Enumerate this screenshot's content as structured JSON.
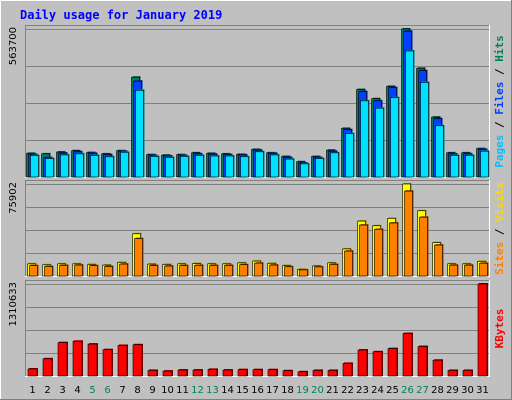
{
  "title": "Daily usage for January 2019",
  "colors": {
    "background": "#c0c0c0",
    "title": "#0000ff",
    "pages": "#00e0ff",
    "files": "#0040ff",
    "sites": "#ff8000",
    "visits": "#ffff00",
    "kbytes": "#ff0000",
    "weekend": "#00805c",
    "weekday": "#000000",
    "pages_label": "#00c0ff",
    "files_label": "#0040ff",
    "hits_label": "#00805c",
    "sites_label": "#ff8000",
    "visits_label": "#ffd700",
    "kbytes_label": "#ff0000"
  },
  "chart_data": {
    "type": "bar",
    "title": "Daily usage for January 2019",
    "categories": [
      "1",
      "2",
      "3",
      "4",
      "5",
      "6",
      "7",
      "8",
      "9",
      "10",
      "11",
      "12",
      "13",
      "14",
      "15",
      "16",
      "17",
      "18",
      "19",
      "20",
      "21",
      "22",
      "23",
      "24",
      "25",
      "26",
      "27",
      "28",
      "29",
      "30",
      "31"
    ],
    "weekend_days": [
      "5",
      "6",
      "12",
      "13",
      "19",
      "20",
      "26",
      "27"
    ],
    "panels": [
      {
        "id": "top",
        "max_label": "563700",
        "ymax": 563700,
        "legend": [
          {
            "text": "Pages",
            "color": "#00c0ff"
          },
          {
            "text": " / ",
            "color": "#000000"
          },
          {
            "text": "Files",
            "color": "#0040ff"
          },
          {
            "text": " / ",
            "color": "#000000"
          },
          {
            "text": "Hits",
            "color": "#00805c"
          }
        ],
        "series": [
          {
            "name": "Hits",
            "color": "#00805c",
            "values": [
              90000,
              88000,
              95000,
              100000,
              93000,
              88000,
              100000,
              380000,
              85000,
              83000,
              85000,
              92000,
              90000,
              88000,
              86000,
              105000,
              92000,
              78000,
              58000,
              78000,
              102000,
              185000,
              333000,
              298000,
              345000,
              563700,
              414000,
              228000,
              92000,
              92000,
              108000
            ]
          },
          {
            "name": "Files",
            "color": "#0040ff",
            "values": [
              86000,
              74000,
              91000,
              96000,
              90000,
              85000,
              98000,
              365000,
              82000,
              80000,
              82000,
              88000,
              87000,
              85000,
              84000,
              102000,
              90000,
              74000,
              53000,
              74000,
              98000,
              180000,
              325000,
              290000,
              340000,
              555000,
              405000,
              222000,
              88000,
              88000,
              105000
            ]
          },
          {
            "name": "Pages",
            "color": "#00e0ff",
            "values": [
              82000,
              70000,
              84000,
              88000,
              82000,
              77000,
              94000,
              330000,
              78000,
              74000,
              78000,
              82000,
              80000,
              80000,
              77000,
              96000,
              84000,
              68000,
              50000,
              70000,
              92000,
              165000,
              290000,
              262000,
              302000,
              480000,
              360000,
              195000,
              82000,
              82000,
              98000
            ]
          }
        ]
      },
      {
        "id": "middle",
        "max_label": "75902",
        "ymax": 75902,
        "legend": [
          {
            "text": "Sites",
            "color": "#ff8000"
          },
          {
            "text": " / ",
            "color": "#000000"
          },
          {
            "text": "Visits",
            "color": "#ffd700"
          }
        ],
        "series": [
          {
            "name": "Visits",
            "color": "#ffff00",
            "values": [
              10000,
              9200,
              10000,
              10000,
              9500,
              9000,
              11200,
              34800,
              9800,
              9500,
              10000,
              10200,
              10000,
              10000,
              10800,
              12300,
              10400,
              8600,
              5500,
              8300,
              10800,
              22300,
              45300,
              41400,
              47500,
              75902,
              53800,
              27500,
              10000,
              10000,
              12000
            ]
          },
          {
            "name": "Sites",
            "color": "#ff8000",
            "values": [
              8500,
              7800,
              8700,
              9000,
              8500,
              7800,
              9800,
              30800,
              8600,
              8200,
              8600,
              8800,
              8700,
              8700,
              9300,
              10600,
              9000,
              7600,
              5000,
              7500,
              9500,
              20500,
              42000,
              38500,
              43700,
              70000,
              48500,
              25500,
              8900,
              8900,
              10500
            ]
          }
        ]
      },
      {
        "id": "bottom",
        "max_label": "1310633",
        "ymax": 1310633,
        "legend": [
          {
            "text": "KBytes",
            "color": "#ff0000"
          }
        ],
        "series": [
          {
            "name": "KBytes",
            "color": "#ff0000",
            "values": [
              100000,
              245000,
              475000,
              495000,
              455000,
              375000,
              435000,
              445000,
              80000,
              70000,
              85000,
              85000,
              95000,
              85000,
              90000,
              90000,
              90000,
              75000,
              60000,
              80000,
              80000,
              180000,
              370000,
              345000,
              390000,
              605000,
              420000,
              225000,
              80000,
              80000,
              1310633
            ]
          }
        ]
      }
    ]
  }
}
